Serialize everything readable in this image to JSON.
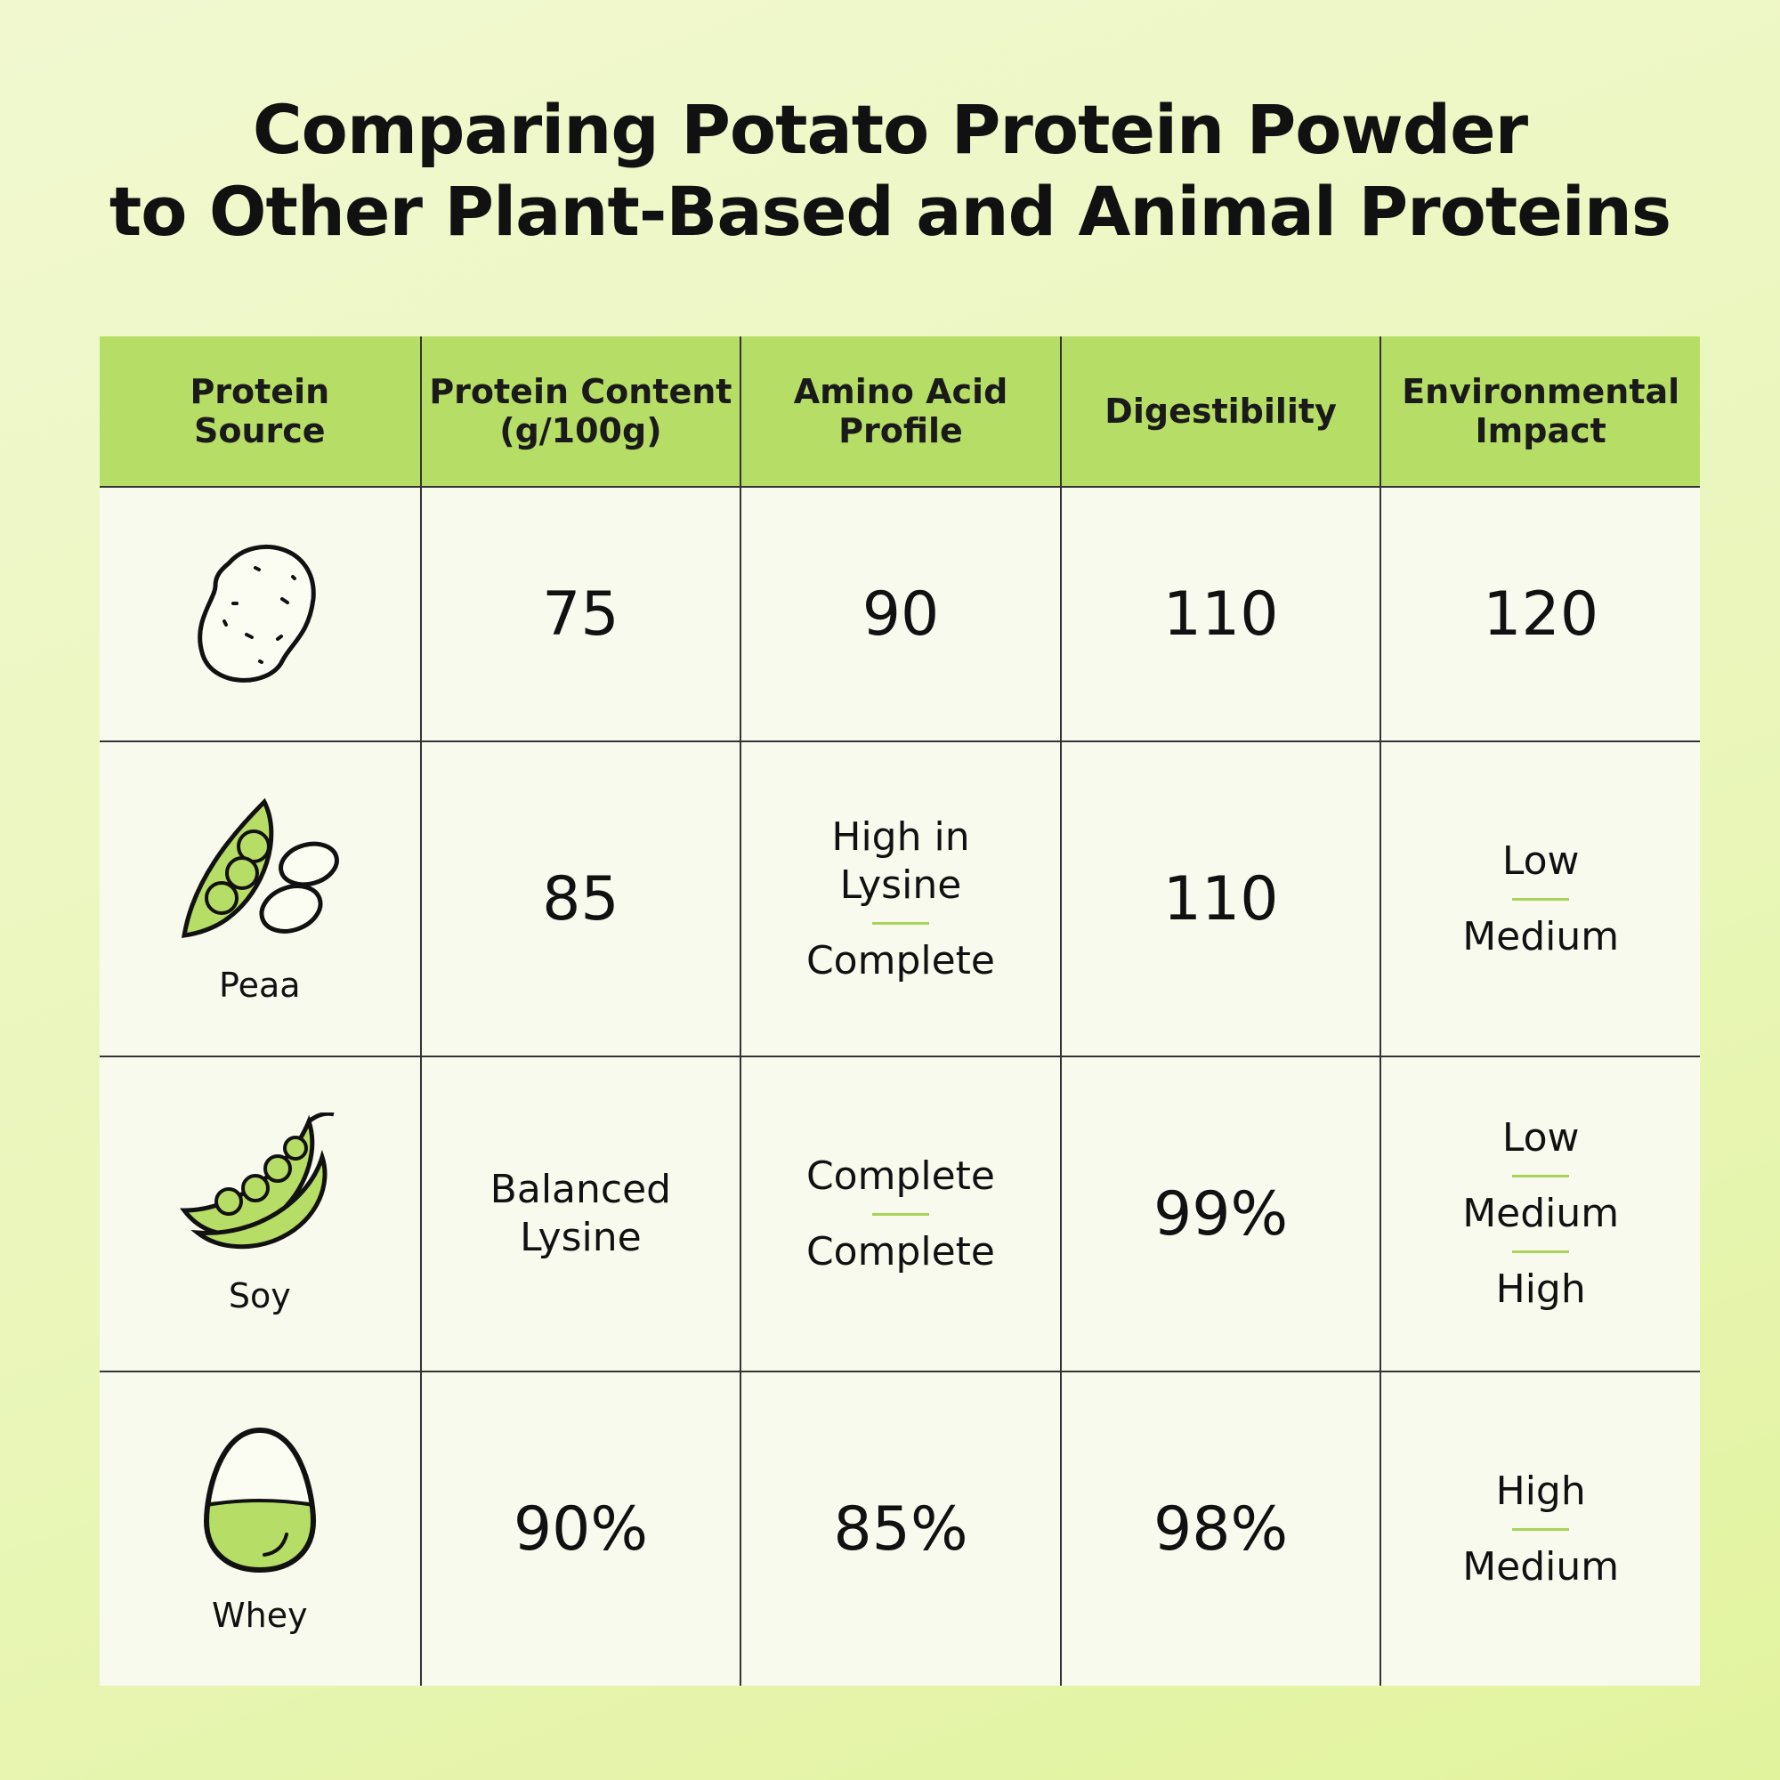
{
  "header": {
    "title": [
      "Comparing Potato Protein Powder",
      "to Other Plant-Based and Animal Proteins"
    ]
  },
  "table": {
    "columns": [
      [
        "Protein",
        "Source"
      ],
      [
        "Protein Content",
        "(g/100g)"
      ],
      [
        "Amino Acid",
        "Profile"
      ],
      [
        "Digestibility"
      ],
      [
        "Environmental",
        "Impact"
      ]
    ],
    "rows": [
      {
        "icon": "potato",
        "cells": [
          [
            "75"
          ],
          [
            "90"
          ],
          [
            "110"
          ],
          [
            "120"
          ]
        ]
      },
      {
        "icon": "pea",
        "source": "Peaa",
        "cells": [
          [
            "85"
          ],
          [
            "High in Lysine",
            "Complete"
          ],
          [
            "110"
          ],
          [
            "Low",
            "Medium"
          ]
        ]
      },
      {
        "icon": "soy",
        "source": "Soy",
        "cells": [
          [
            "Balanced Lysine"
          ],
          [
            "Complete",
            "Complete"
          ],
          [
            "99%"
          ],
          [
            "Low",
            "Medium",
            "High"
          ]
        ]
      },
      {
        "icon": "egg",
        "source": "Whey",
        "cells": [
          [
            "90%"
          ],
          [
            "85%"
          ],
          [
            "98%"
          ],
          [
            "High",
            "Medium"
          ]
        ]
      }
    ]
  }
}
